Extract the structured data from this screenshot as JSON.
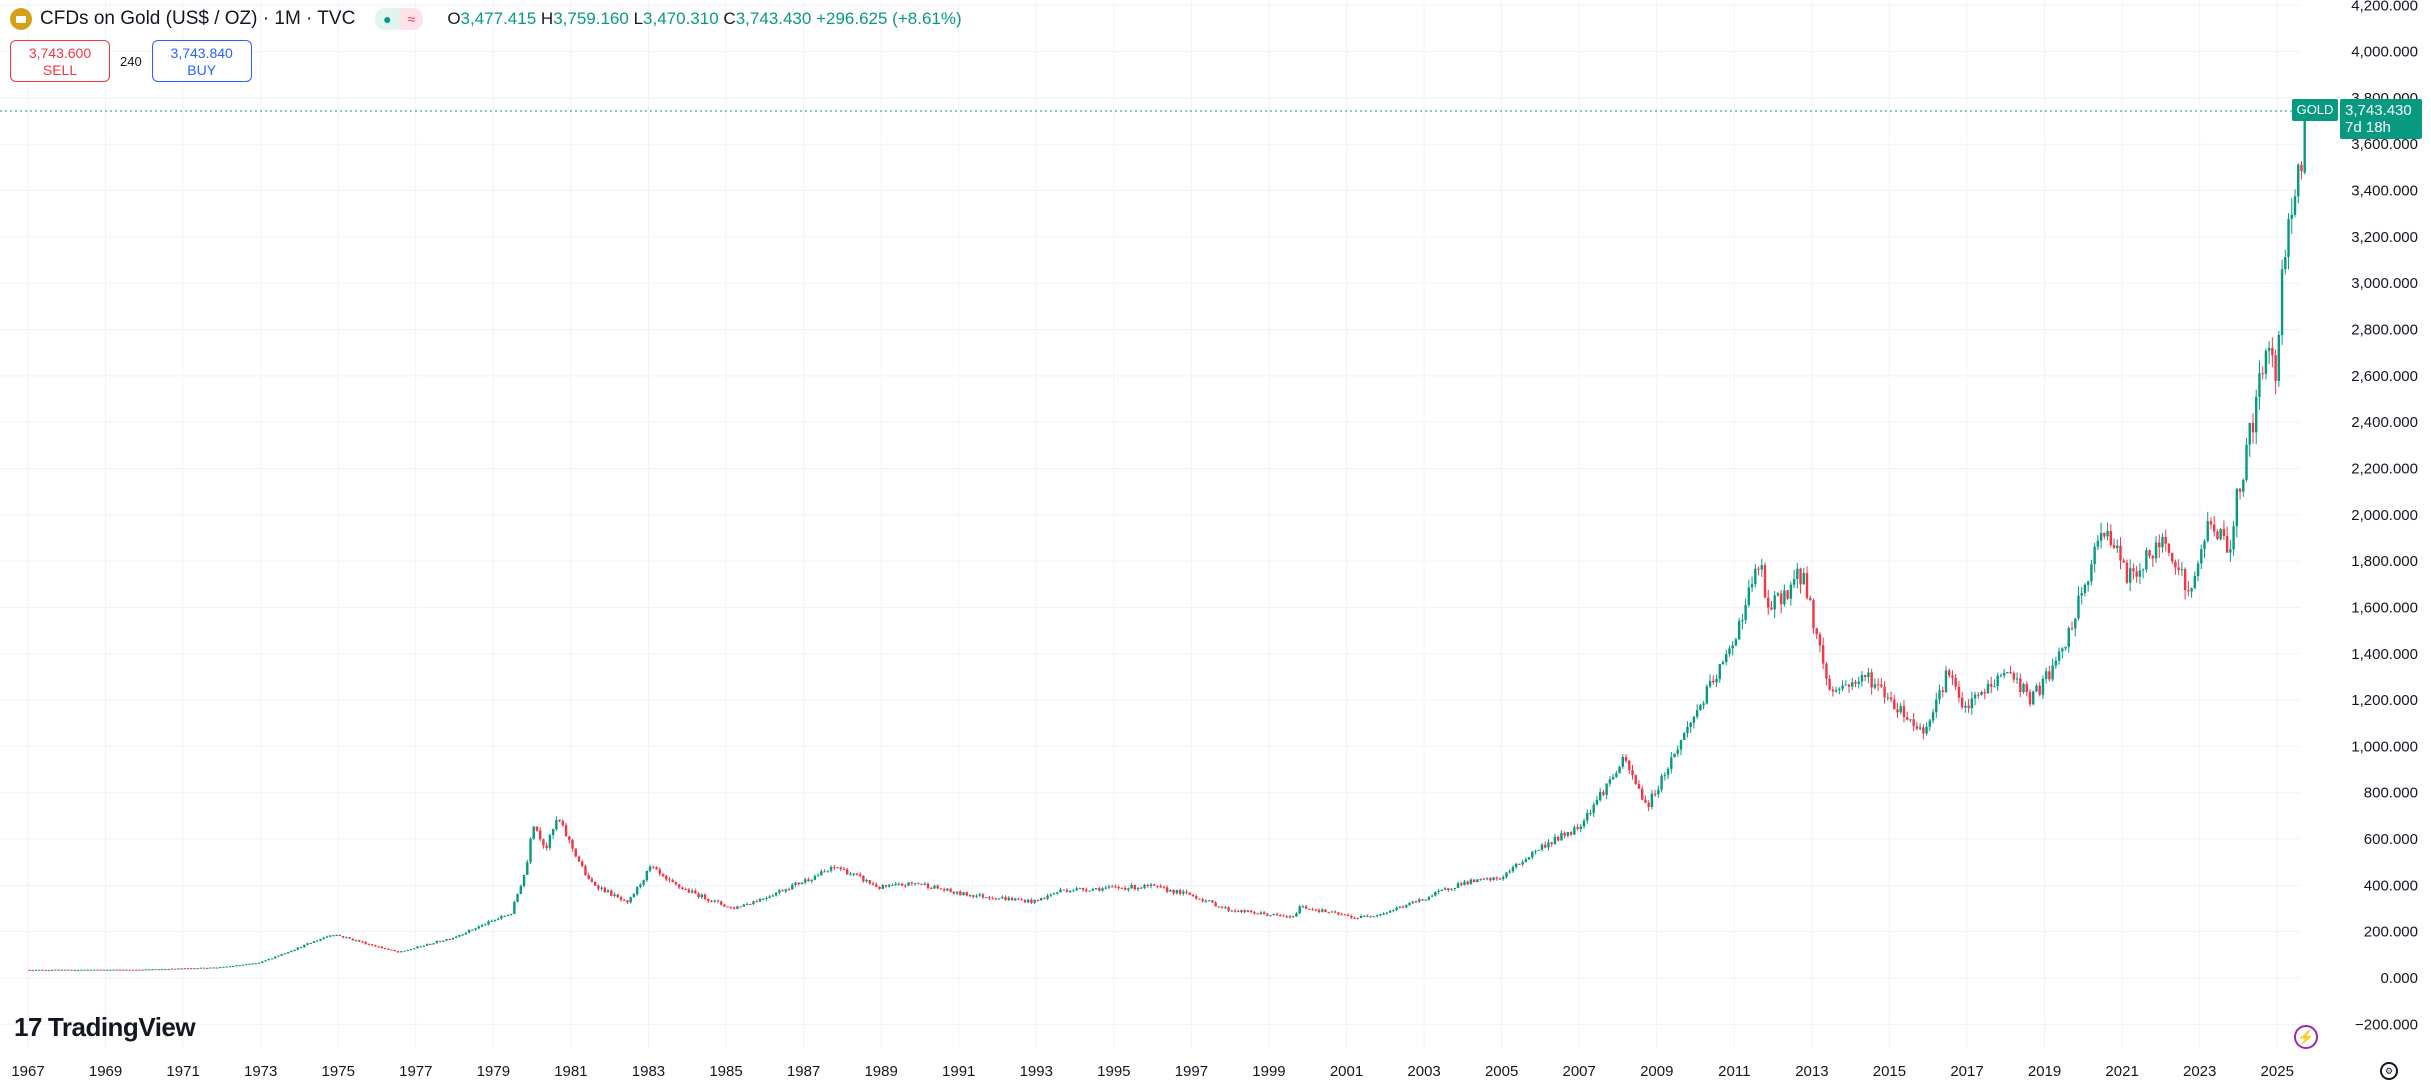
{
  "header": {
    "title": "CFDs on Gold (US$ / OZ) · 1M · TVC",
    "open_label": "O",
    "open": "3,477.415",
    "high_label": "H",
    "high": "3,759.160",
    "low_label": "L",
    "low": "3,470.310",
    "close_label": "C",
    "close": "3,743.430",
    "change": "+296.625 (+8.61%)",
    "status_icon": "●",
    "delay_icon": "≈"
  },
  "trade": {
    "sell_price": "3,743.600",
    "sell_label": "SELL",
    "spread": "240",
    "buy_price": "3,743.840",
    "buy_label": "BUY"
  },
  "price_tag": {
    "symbol": "GOLD",
    "price": "3,743.430",
    "countdown": "7d 18h"
  },
  "brand": {
    "logo_mark": "17",
    "name": "TradingView"
  },
  "icons": {
    "bolt": "⚡",
    "settings": "⚙"
  },
  "colors": {
    "up": "#089981",
    "down": "#f23645",
    "grid": "#f0f3fa"
  },
  "chart_data": {
    "type": "candlestick",
    "interval": "1M",
    "ylim": [
      -200,
      4200
    ],
    "y_ticks": [
      4200,
      4000,
      3800,
      3600,
      3400,
      3200,
      3000,
      2800,
      2600,
      2400,
      2200,
      2000,
      1800,
      1600,
      1400,
      1200,
      1000,
      800,
      600,
      400,
      200,
      0,
      -200
    ],
    "y_tick_labels": [
      "4,200.000",
      "4,000.000",
      "3,800.000",
      "3,600.000",
      "3,400.000",
      "3,200.000",
      "3,000.000",
      "2,800.000",
      "2,600.000",
      "2,400.000",
      "2,200.000",
      "2,000.000",
      "1,800.000",
      "1,600.000",
      "1,400.000",
      "1,200.000",
      "1,000.000",
      "800.000",
      "600.000",
      "400.000",
      "200.000",
      "0.000",
      "−200.000"
    ],
    "x_tick_labels": [
      "1967",
      "1969",
      "1971",
      "1973",
      "1975",
      "1977",
      "1979",
      "1981",
      "1983",
      "1985",
      "1987",
      "1989",
      "1991",
      "1993",
      "1995",
      "1997",
      "1999",
      "2001",
      "2003",
      "2005",
      "2007",
      "2009",
      "2011",
      "2013",
      "2015",
      "2017",
      "2019",
      "2021",
      "2023",
      "2025"
    ],
    "approx_price_path": [
      [
        1967,
        35
      ],
      [
        1970,
        36
      ],
      [
        1972,
        46
      ],
      [
        1973,
        65
      ],
      [
        1974,
        130
      ],
      [
        1974.9,
        190
      ],
      [
        1976.6,
        110
      ],
      [
        1978,
        175
      ],
      [
        1979.5,
        280
      ],
      [
        1979.9,
        480
      ],
      [
        1980.05,
        680
      ],
      [
        1980.4,
        560
      ],
      [
        1980.7,
        690
      ],
      [
        1981.5,
        420
      ],
      [
        1982.5,
        320
      ],
      [
        1983.1,
        480
      ],
      [
        1983.5,
        420
      ],
      [
        1984,
        380
      ],
      [
        1985.2,
        300
      ],
      [
        1986,
        345
      ],
      [
        1987.9,
        480
      ],
      [
        1989,
        390
      ],
      [
        1990,
        410
      ],
      [
        1991,
        365
      ],
      [
        1993,
        330
      ],
      [
        1993.7,
        380
      ],
      [
        1996,
        395
      ],
      [
        1997,
        360
      ],
      [
        1998,
        295
      ],
      [
        1999.7,
        260
      ],
      [
        1999.8,
        310
      ],
      [
        2001.3,
        260
      ],
      [
        2002,
        280
      ],
      [
        2003,
        340
      ],
      [
        2004,
        410
      ],
      [
        2005,
        430
      ],
      [
        2006,
        560
      ],
      [
        2007,
        650
      ],
      [
        2008.2,
        940
      ],
      [
        2008.8,
        740
      ],
      [
        2009.9,
        1100
      ],
      [
        2010.9,
        1400
      ],
      [
        2011.7,
        1800
      ],
      [
        2011.9,
        1580
      ],
      [
        2012.8,
        1750
      ],
      [
        2013.5,
        1240
      ],
      [
        2014.5,
        1300
      ],
      [
        2015.9,
        1060
      ],
      [
        2016.6,
        1340
      ],
      [
        2016.9,
        1150
      ],
      [
        2018.1,
        1330
      ],
      [
        2018.7,
        1200
      ],
      [
        2019.5,
        1400
      ],
      [
        2020.6,
        1960
      ],
      [
        2021.2,
        1720
      ],
      [
        2022.2,
        1900
      ],
      [
        2022.8,
        1640
      ],
      [
        2023.3,
        1990
      ],
      [
        2023.8,
        1840
      ],
      [
        2024.0,
        2060
      ],
      [
        2024.8,
        2740
      ],
      [
        2025.0,
        2630
      ],
      [
        2025.3,
        3300
      ],
      [
        2025.58,
        3447
      ]
    ],
    "last_candle": {
      "open": 3477.415,
      "high": 3759.16,
      "low": 3470.31,
      "close": 3743.43
    },
    "current_price": 3743.43
  }
}
